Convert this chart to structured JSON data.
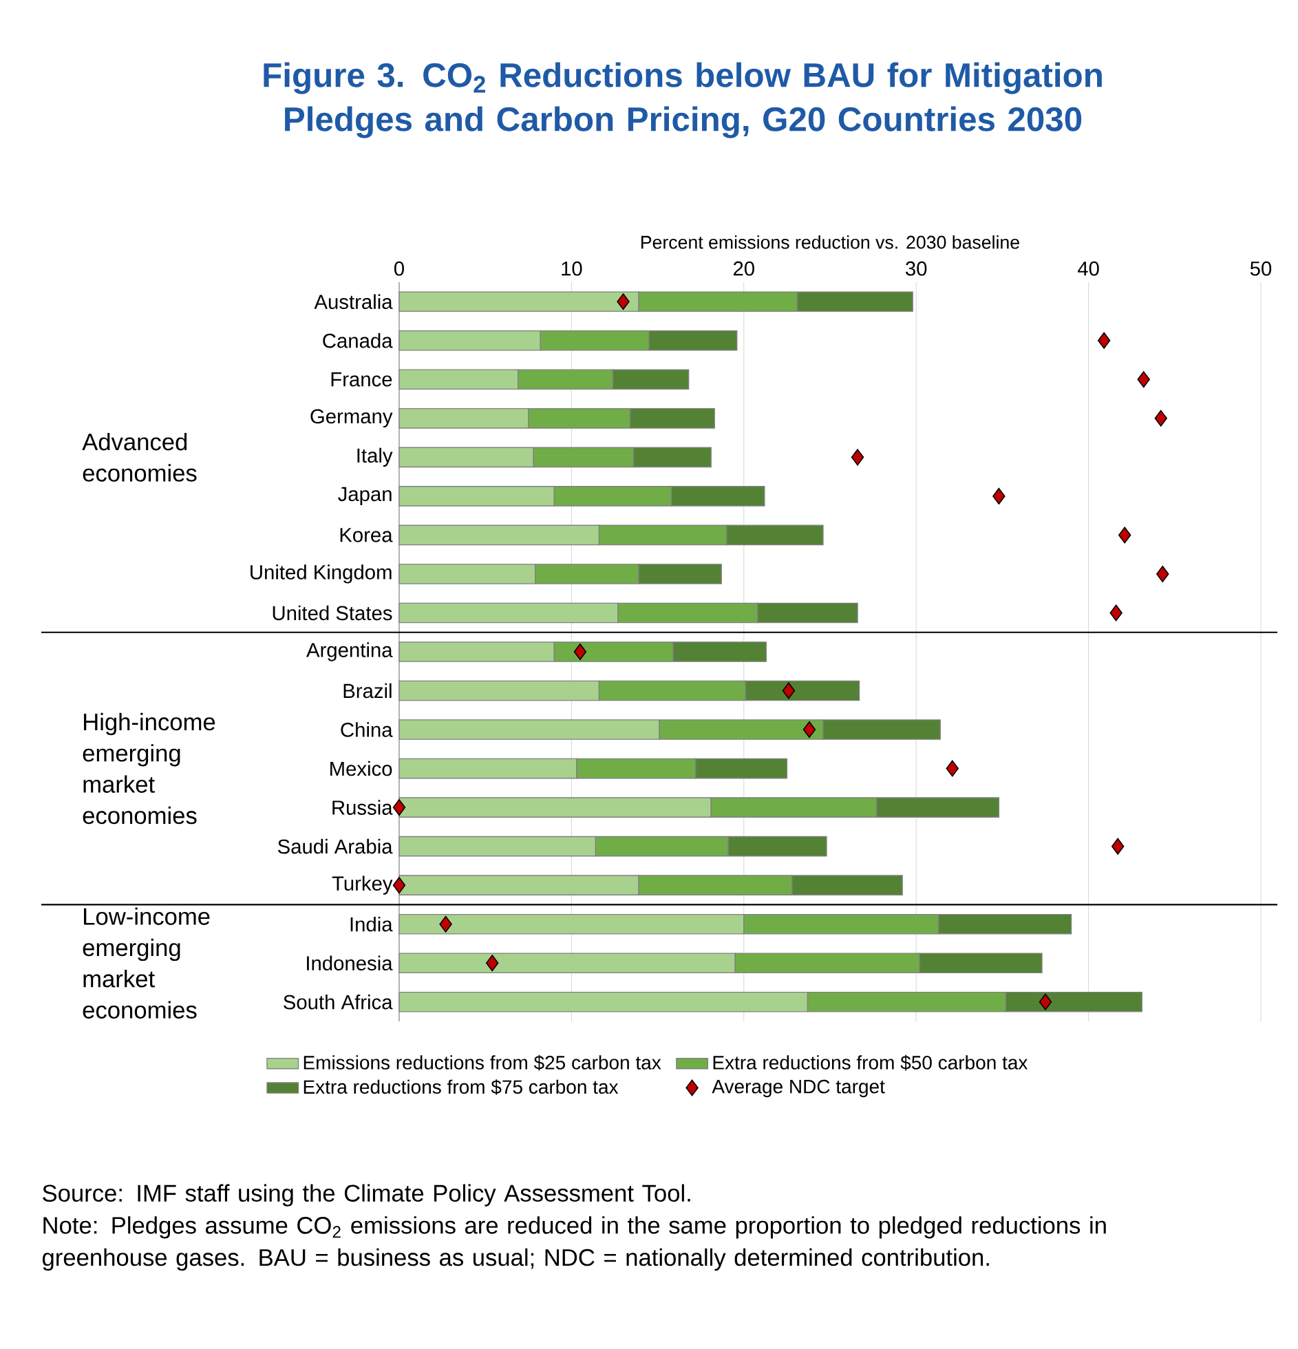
{
  "chart_data": {
    "type": "bar",
    "orientation": "horizontal",
    "stacked": true,
    "title": "Figure 3. CO$_{2}$ Reductions below BAU for Mitigation Pledges and Carbon Pricing, G20 Countries 2030",
    "xlabel": "Percent emissions reduction vs. 2030 baseline",
    "categories": [
      "Australia",
      "Canada",
      "France",
      "Germany",
      "Italy",
      "Japan",
      "Korea",
      "United Kingdom",
      "United States",
      "Argentina",
      "Brazil",
      "China",
      "Mexico",
      "Russia",
      "Saudi Arabia",
      "Turkey",
      "India",
      "Indonesia",
      "South Africa"
    ],
    "series": [
      {
        "name": "Emissions reductions from $25 carbon tax",
        "color": "#a9d18e",
        "values": [
          13.9,
          8.2,
          6.9,
          7.5,
          7.8,
          9.0,
          11.6,
          7.9,
          12.7,
          9.0,
          11.6,
          15.1,
          10.3,
          18.1,
          11.4,
          13.9,
          20.0,
          19.5,
          23.7
        ]
      },
      {
        "name": "Extra reductions from $50 carbon tax",
        "color": "#70ad47",
        "values": [
          9.2,
          6.3,
          5.5,
          5.9,
          5.8,
          6.8,
          7.4,
          6.0,
          8.1,
          6.9,
          8.5,
          9.5,
          6.9,
          9.6,
          7.7,
          8.9,
          11.3,
          10.7,
          11.5
        ]
      },
      {
        "name": "Extra reductions from $75 carbon tax",
        "color": "#548235",
        "values": [
          6.7,
          5.1,
          4.4,
          4.9,
          4.5,
          5.4,
          5.6,
          4.8,
          5.8,
          5.4,
          6.6,
          6.8,
          5.3,
          7.1,
          5.7,
          6.4,
          7.7,
          7.1,
          7.9
        ]
      },
      {
        "name": "Average NDC target",
        "type": "scatter",
        "marker": "diamond",
        "color": "#c00000",
        "values": [
          13.0,
          40.9,
          43.2,
          44.2,
          26.6,
          34.8,
          42.1,
          44.3,
          41.6,
          10.5,
          22.6,
          23.8,
          32.1,
          0,
          41.7,
          0,
          2.7,
          5.4,
          37.5
        ]
      }
    ],
    "xlim": [
      0,
      50
    ],
    "xticks": [
      0,
      10,
      20,
      30,
      40,
      50
    ],
    "grid": "x",
    "legend": "bottom",
    "annotations": [
      "Advanced economies",
      "High-income emerging market economies",
      "Low-income emerging market economies",
      "Source: IMF staff using the Climate Policy Assessment Tool.",
      "Note: Pledges assume CO$_{2}$ emissions are reduced in the same proportion to pledged reductions in greenhouse gases. BAU = business as usual; NDC = nationally determined contribution."
    ]
  }
}
